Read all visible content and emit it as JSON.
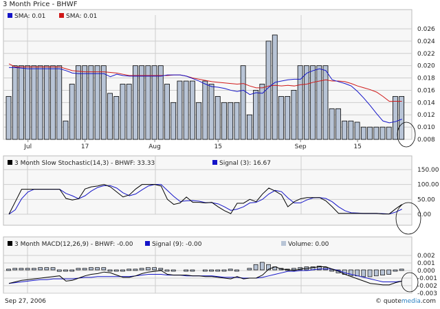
{
  "header": {
    "title": "3 Month Price - BHWF"
  },
  "footer": {
    "date": "Sep 27, 2006",
    "brand_prefix": "© quote",
    "brand_media": "media",
    "brand_suffix": ".com"
  },
  "colors": {
    "bar_fill": "#b8c4d6",
    "bar_stroke": "#000000",
    "sma_blue": "#1414c8",
    "sma_red": "#d01818",
    "grid": "#cccccc",
    "panel_bg": "#f4f4f4",
    "panel_border": "#bbbbbb"
  },
  "chart_data": [
    {
      "type": "bar",
      "title": "3 Month Price - BHWF",
      "legend": [
        {
          "label": "SMA: 0.01",
          "color": "#1414c8"
        },
        {
          "label": "SMA: 0.01",
          "color": "#d01818"
        }
      ],
      "xlabels": [
        {
          "label": "Jul",
          "index": 3
        },
        {
          "label": "17",
          "index": 12
        },
        {
          "label": "Aug",
          "index": 23
        },
        {
          "label": "15",
          "index": 33
        },
        {
          "label": "Sep",
          "index": 46
        },
        {
          "label": "15",
          "index": 55
        }
      ],
      "yticks": [
        "0.026",
        "0.024",
        "0.022",
        "0.020",
        "0.018",
        "0.016",
        "0.014",
        "0.012",
        "0.010",
        "0.008"
      ],
      "ylim": [
        0.008,
        0.026
      ],
      "values": [
        0.015,
        0.02,
        0.02,
        0.02,
        0.02,
        0.02,
        0.02,
        0.02,
        0.02,
        0.011,
        0.017,
        0.02,
        0.02,
        0.02,
        0.02,
        0.02,
        0.0155,
        0.015,
        0.017,
        0.017,
        0.02,
        0.02,
        0.02,
        0.02,
        0.02,
        0.017,
        0.014,
        0.0175,
        0.0175,
        0.0175,
        0.014,
        0.0175,
        0.017,
        0.015,
        0.014,
        0.014,
        0.014,
        0.02,
        0.012,
        0.016,
        0.017,
        0.024,
        0.025,
        0.015,
        0.015,
        0.016,
        0.02,
        0.02,
        0.02,
        0.02,
        0.02,
        0.013,
        0.013,
        0.011,
        0.011,
        0.0108,
        0.01,
        0.01,
        0.01,
        0.01,
        0.01,
        0.015,
        0.015
      ],
      "sma_blue": [
        0.0197,
        0.0197,
        0.0196,
        0.0195,
        0.0195,
        0.0195,
        0.0195,
        0.0195,
        0.0195,
        0.0192,
        0.0188,
        0.0187,
        0.0187,
        0.0187,
        0.0187,
        0.0187,
        0.0182,
        0.0186,
        0.0184,
        0.0183,
        0.0183,
        0.0183,
        0.0183,
        0.0183,
        0.0183,
        0.0185,
        0.0185,
        0.0185,
        0.0183,
        0.0179,
        0.0175,
        0.017,
        0.0166,
        0.0165,
        0.0163,
        0.016,
        0.0158,
        0.016,
        0.0153,
        0.0156,
        0.0155,
        0.0165,
        0.0173,
        0.0175,
        0.0177,
        0.0178,
        0.0178,
        0.0188,
        0.0192,
        0.0195,
        0.0192,
        0.0177,
        0.0174,
        0.0171,
        0.0167,
        0.0158,
        0.0147,
        0.0135,
        0.0122,
        0.011,
        0.0107,
        0.0109,
        0.0113
      ],
      "sma_red": [
        0.0203,
        0.0198,
        0.0198,
        0.0198,
        0.0198,
        0.0198,
        0.0198,
        0.0198,
        0.0198,
        0.0195,
        0.0192,
        0.0191,
        0.019,
        0.019,
        0.019,
        0.019,
        0.0189,
        0.0188,
        0.0186,
        0.0184,
        0.0184,
        0.0184,
        0.0184,
        0.0184,
        0.0184,
        0.0184,
        0.0185,
        0.0185,
        0.0183,
        0.018,
        0.0178,
        0.0176,
        0.0174,
        0.0173,
        0.0172,
        0.0171,
        0.017,
        0.0171,
        0.0167,
        0.0164,
        0.0164,
        0.0167,
        0.0168,
        0.0167,
        0.0168,
        0.0167,
        0.0169,
        0.017,
        0.0173,
        0.0175,
        0.0177,
        0.0175,
        0.0175,
        0.0174,
        0.0171,
        0.0167,
        0.0164,
        0.0161,
        0.0157,
        0.015,
        0.0142,
        0.0142,
        0.0142
      ]
    },
    {
      "type": "line",
      "title": "3 Month  Slow Stochastic(14,3) - BHWF: 33.33",
      "legend": [
        {
          "label": "3 Month  Slow Stochastic(14,3) - BHWF: 33.33",
          "color": "#000000"
        },
        {
          "label": "Signal (3): 16.67",
          "color": "#1414c8"
        }
      ],
      "yticks": [
        "150.00",
        "100.00",
        "50.00",
        "0.00"
      ],
      "ylim": [
        0,
        150
      ],
      "series": [
        {
          "name": "Slow Stochastic",
          "values": [
            0,
            42,
            84,
            84,
            84,
            84,
            84,
            84,
            84,
            53,
            48,
            52,
            85,
            92,
            95,
            100,
            92,
            75,
            58,
            65,
            85,
            100,
            100,
            100,
            95,
            50,
            33,
            38,
            58,
            40,
            40,
            38,
            40,
            25,
            12,
            2,
            37,
            37,
            50,
            42,
            68,
            88,
            78,
            65,
            25,
            42,
            52,
            56,
            56,
            56,
            45,
            25,
            3,
            3,
            3,
            3,
            3,
            3,
            3,
            1,
            1,
            18,
            33
          ]
        },
        {
          "name": "Signal (3)",
          "values": [
            0,
            15,
            52,
            75,
            84,
            84,
            84,
            84,
            84,
            70,
            62,
            52,
            62,
            78,
            90,
            96,
            96,
            88,
            72,
            62,
            68,
            82,
            95,
            100,
            100,
            80,
            60,
            43,
            45,
            46,
            44,
            39,
            39,
            35,
            25,
            13,
            17,
            25,
            38,
            40,
            50,
            68,
            80,
            76,
            55,
            38,
            38,
            48,
            55,
            56,
            53,
            42,
            25,
            12,
            5,
            4,
            3,
            3,
            3,
            2,
            1,
            7,
            17
          ]
        }
      ]
    },
    {
      "type": "line",
      "title": "3 Month MACD(12,26,9) - BHWF: -0.00",
      "legend": [
        {
          "label": "3 Month MACD(12,26,9) - BHWF: -0.00",
          "color": "#000000"
        },
        {
          "label": "Signal (9): -0.00",
          "color": "#1414c8"
        },
        {
          "label": "Volume: 0.00",
          "color": "#b8c4d6"
        }
      ],
      "yticks": [
        "0.002",
        "0.001",
        "0.000",
        "-0.001",
        "-0.002",
        "-0.003"
      ],
      "ylim": [
        -0.003,
        0.002
      ],
      "series": [
        {
          "name": "MACD",
          "values": [
            -0.0017,
            -0.0015,
            -0.0013,
            -0.0012,
            -0.0011,
            -0.001,
            -0.0009,
            -0.0008,
            -0.0007,
            -0.0014,
            -0.0013,
            -0.001,
            -0.0007,
            -0.0005,
            -0.0004,
            -0.0002,
            -0.0003,
            -0.0006,
            -0.0009,
            -0.0009,
            -0.0007,
            -0.0004,
            -0.0002,
            -0.0001,
            0.0,
            -0.0005,
            -0.0006,
            -0.0006,
            -0.0006,
            -0.0007,
            -0.0007,
            -0.0008,
            -0.0008,
            -0.0009,
            -0.001,
            -0.0011,
            -0.0008,
            -0.0011,
            -0.001,
            -0.001,
            -0.0006,
            0.0002,
            0.0005,
            0.0002,
            0.0001,
            0.0,
            0.0002,
            0.0003,
            0.0004,
            0.0005,
            0.0005,
            0.0002,
            -0.0001,
            -0.0005,
            -0.0008,
            -0.0011,
            -0.0014,
            -0.0017,
            -0.0018,
            -0.0019,
            -0.0019,
            -0.0016,
            -0.0014
          ]
        },
        {
          "name": "Signal (9)",
          "values": [
            -0.0017,
            -0.0016,
            -0.0015,
            -0.0014,
            -0.0013,
            -0.0012,
            -0.0012,
            -0.0011,
            -0.0011,
            -0.0011,
            -0.0011,
            -0.001,
            -0.0009,
            -0.0009,
            -0.0008,
            -0.0008,
            -0.0008,
            -0.0008,
            -0.0008,
            -0.0008,
            -0.0007,
            -0.0006,
            -0.0005,
            -0.0005,
            -0.0005,
            -0.0006,
            -0.0006,
            -0.0006,
            -0.0007,
            -0.0007,
            -0.0007,
            -0.0007,
            -0.0007,
            -0.0008,
            -0.0009,
            -0.0009,
            -0.0009,
            -0.001,
            -0.001,
            -0.001,
            -0.0009,
            -0.0007,
            -0.0005,
            -0.0003,
            -0.0001,
            -0.0001,
            0.0,
            0.0,
            0.0001,
            0.0002,
            0.0002,
            0.0002,
            0.0,
            -0.0003,
            -0.0005,
            -0.0007,
            -0.0009,
            -0.0011,
            -0.0013,
            -0.0015,
            -0.0015,
            -0.0015,
            -0.0014
          ]
        },
        {
          "name": "Histogram",
          "values": [
            0.0001,
            0.0002,
            0.0002,
            0.0002,
            0.0002,
            0.0003,
            0.0003,
            0.0003,
            -0.0002,
            -0.0001,
            0.0,
            0.0002,
            0.0002,
            0.0003,
            0.0003,
            0.0003,
            0.0,
            0.0,
            0.0,
            0.0001,
            0.0001,
            0.0002,
            0.0003,
            0.0003,
            0.0002,
            0.0,
            0.0,
            null,
            0.0,
            0.0,
            null,
            0.0,
            -0.0001,
            -0.0001,
            -0.0001,
            0.0001,
            0.0,
            null,
            0.0002,
            0.0007,
            0.001,
            0.0007,
            0.0004,
            0.0002,
            0.0001,
            0.0002,
            0.0003,
            0.0004,
            0.0004,
            0.0005,
            0.0003,
            0.0,
            -0.0004,
            -0.0006,
            -0.0008,
            -0.0008,
            -0.0009,
            -0.0009,
            -0.0008,
            -0.0007,
            -0.0006,
            0.0,
            0.0001
          ]
        }
      ]
    }
  ]
}
